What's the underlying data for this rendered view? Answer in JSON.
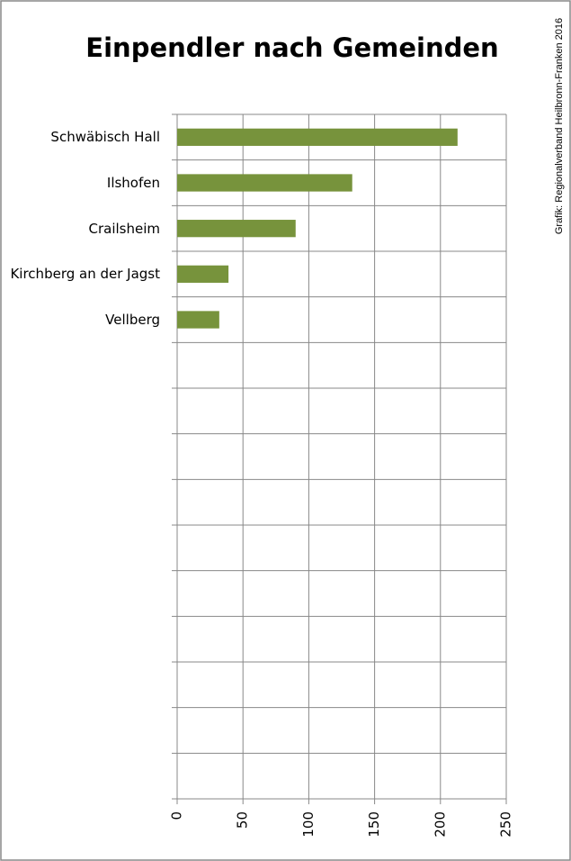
{
  "chart_data": {
    "type": "bar",
    "orientation": "horizontal",
    "title": "Einpendler nach Gemeinden",
    "source": "Grafik: Regionalverband Heilbronn-Franken 2016",
    "categories": [
      "Schwäbisch Hall",
      "Ilshofen",
      "Crailsheim",
      "Kirchberg an der Jagst",
      "Vellberg",
      null,
      null,
      null,
      null,
      null,
      null,
      null,
      null,
      null,
      null
    ],
    "values": [
      213,
      133,
      90,
      39,
      32,
      null,
      null,
      null,
      null,
      null,
      null,
      null,
      null,
      null,
      null
    ],
    "color": "#77933c",
    "xlim": [
      0,
      250
    ],
    "xticks": [
      0,
      50,
      100,
      150,
      200,
      250
    ],
    "grid": true
  }
}
